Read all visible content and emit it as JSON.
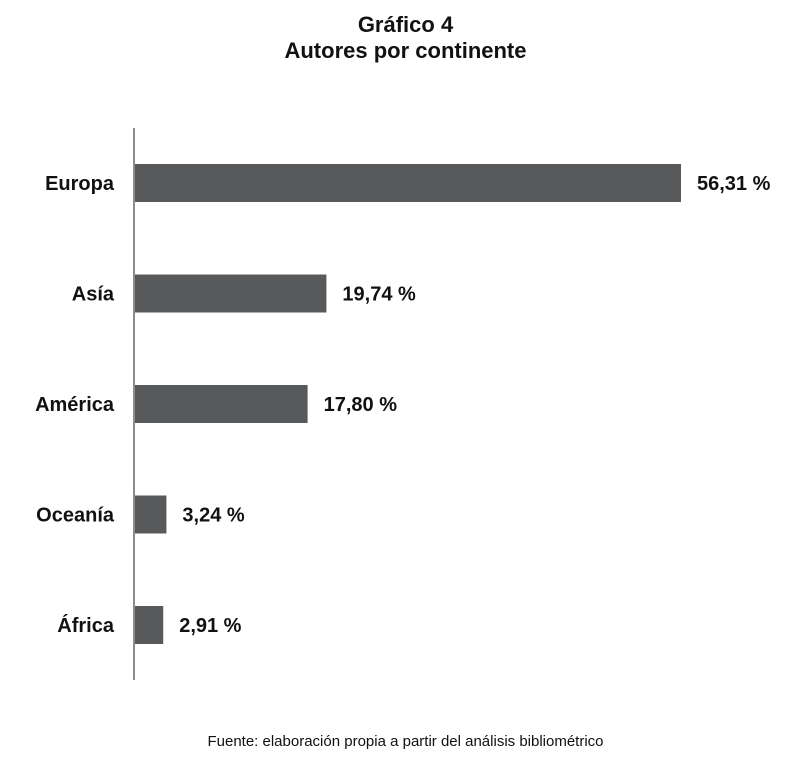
{
  "chart_data": {
    "type": "bar",
    "orientation": "horizontal",
    "title": "Gráfico 4",
    "subtitle": "Autores por continente",
    "categories": [
      "Europa",
      "Asía",
      "América",
      "Oceanía",
      "África"
    ],
    "values": [
      56.31,
      19.74,
      17.8,
      3.24,
      2.91
    ],
    "value_labels": [
      "56,31 %",
      "19,74 %",
      "17,80 %",
      "3,24 %",
      "2,91 %"
    ],
    "xlabel": "",
    "ylabel": "",
    "xlim": [
      0,
      60
    ],
    "grid": false,
    "legend": "none",
    "bar_color": "#58595b",
    "axis_color": "#666666"
  },
  "source_note": "Fuente: elaboración propia a partir del análisis bibliométrico"
}
